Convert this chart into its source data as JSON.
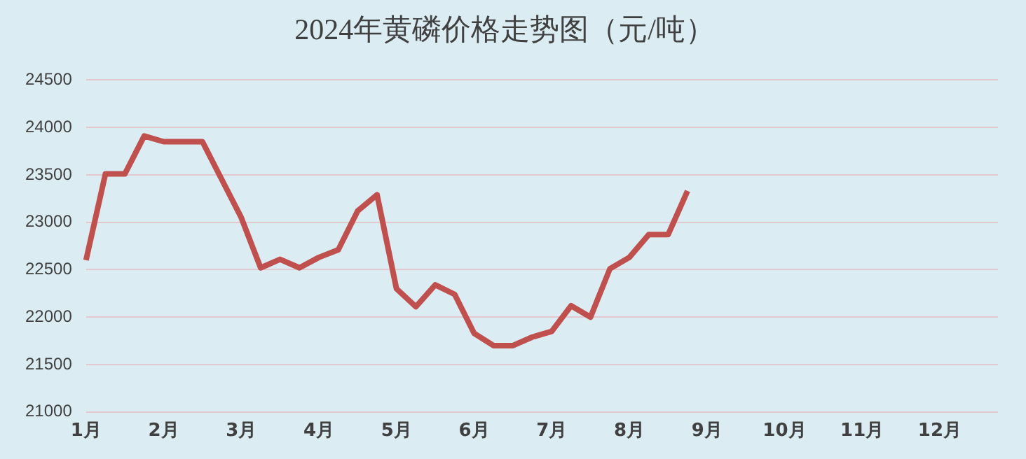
{
  "chart_data": {
    "type": "line",
    "title": "2024年黄磷价格走势图（元/吨）",
    "categories": [
      "1月",
      null,
      null,
      null,
      "2月",
      null,
      null,
      null,
      "3月",
      null,
      null,
      null,
      "4月",
      null,
      null,
      null,
      "5月",
      null,
      null,
      null,
      "6月",
      null,
      null,
      null,
      "7月",
      null,
      null,
      null,
      "8月",
      null,
      null,
      null,
      "9月",
      null,
      null,
      null,
      "10月",
      null,
      null,
      null,
      "11月",
      null,
      null,
      null,
      "12月",
      null,
      null,
      null
    ],
    "series": [
      {
        "color": "#c0504d",
        "values": [
          22600,
          23510,
          23510,
          23910,
          23850,
          23850,
          23850,
          23450,
          23050,
          22520,
          22610,
          22520,
          22630,
          22710,
          23120,
          23290,
          22300,
          22110,
          22340,
          22240,
          21830,
          21700,
          21700,
          21790,
          21850,
          22120,
          22000,
          22510,
          22630,
          22870,
          22870,
          23330,
          null,
          null,
          null,
          null,
          null,
          null,
          null,
          null,
          null,
          null,
          null,
          null,
          null,
          null,
          null,
          null
        ]
      }
    ],
    "ylim": [
      21000,
      24500
    ],
    "yticks": [
      21000,
      21500,
      22000,
      22500,
      23000,
      23500,
      24000,
      24500
    ],
    "grid": "y",
    "legend": false,
    "marker": "none",
    "line_style": "solid"
  }
}
